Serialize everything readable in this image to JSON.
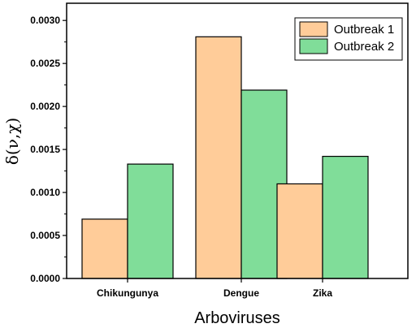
{
  "chart_data": {
    "type": "bar",
    "categories": [
      "Chikungunya",
      "Dengue",
      "Zika"
    ],
    "series": [
      {
        "name": "Outbreak 1",
        "color": "#FFCC99",
        "values": [
          0.00069,
          0.00281,
          0.0011
        ]
      },
      {
        "name": "Outbreak 2",
        "color": "#80DD99",
        "values": [
          0.00133,
          0.00219,
          0.00142
        ]
      }
    ],
    "title": "",
    "xlabel": "Arboviruses",
    "ylabel": "δ(ν,χ)",
    "ylim": [
      0,
      0.0032
    ],
    "yticks": [
      "0.0000",
      "0.0005",
      "0.0010",
      "0.0015",
      "0.0020",
      "0.0025",
      "0.0030"
    ],
    "ytick_values": [
      0,
      0.0005,
      0.001,
      0.0015,
      0.002,
      0.0025,
      0.003
    ],
    "grid": false,
    "legend_position": "top-right"
  }
}
